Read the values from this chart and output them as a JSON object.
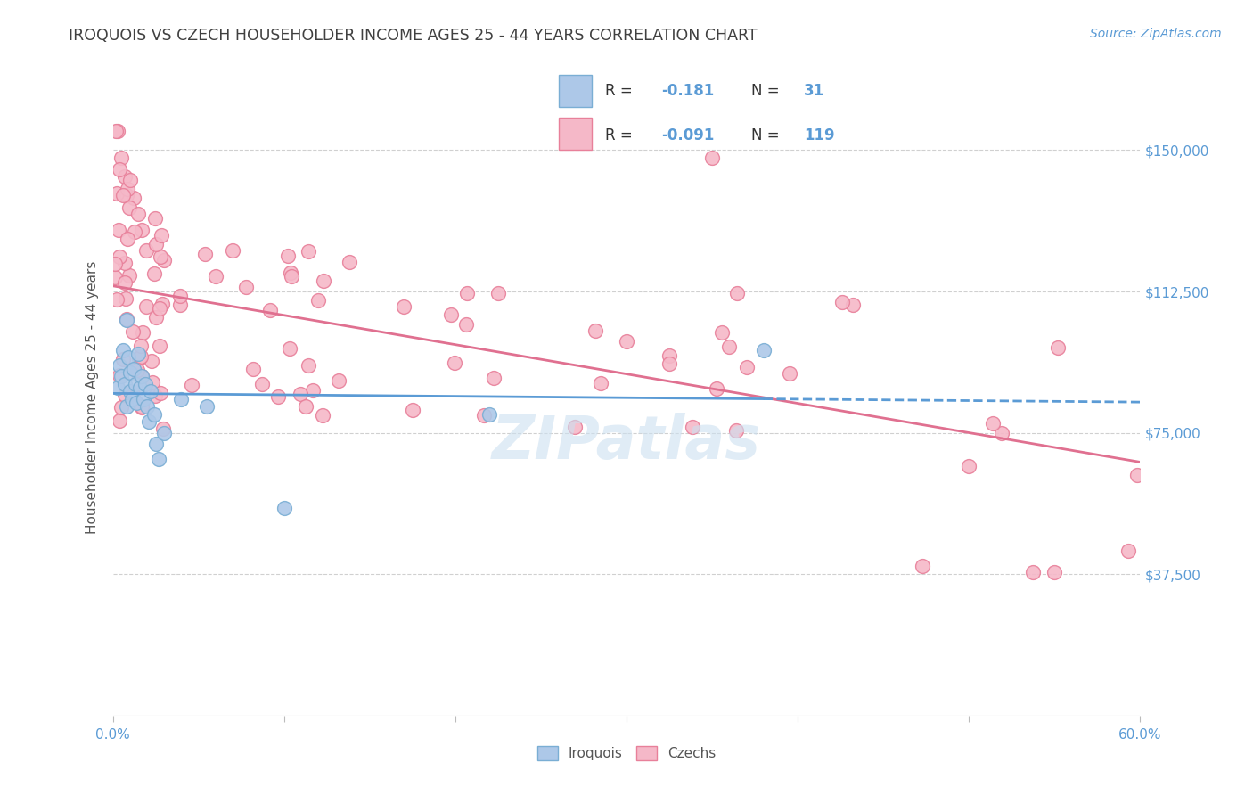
{
  "title": "IROQUOIS VS CZECH HOUSEHOLDER INCOME AGES 25 - 44 YEARS CORRELATION CHART",
  "source": "Source: ZipAtlas.com",
  "ylabel": "Householder Income Ages 25 - 44 years",
  "ytick_labels": [
    "$37,500",
    "$75,000",
    "$112,500",
    "$150,000"
  ],
  "ytick_values": [
    37500,
    75000,
    112500,
    150000
  ],
  "ymin": 0,
  "ymax": 168750,
  "xmin": 0.0,
  "xmax": 0.6,
  "iroquois_R": -0.181,
  "iroquois_N": 31,
  "czechs_R": -0.091,
  "czechs_N": 119,
  "iroquois_color": "#adc8e8",
  "iroquois_edge_color": "#7aaed4",
  "iroquois_line_color": "#5b9bd5",
  "czechs_color": "#f5b8c8",
  "czechs_edge_color": "#e8809a",
  "czechs_line_color": "#e07090",
  "background_color": "#ffffff",
  "title_color": "#404040",
  "title_fontsize": 12.5,
  "source_fontsize": 10,
  "axis_label_fontsize": 11,
  "tick_label_color": "#5b9bd5",
  "grid_color": "#d0d0d0",
  "watermark_color": "#cce0f0",
  "legend_box_color": "#e8e8e8"
}
